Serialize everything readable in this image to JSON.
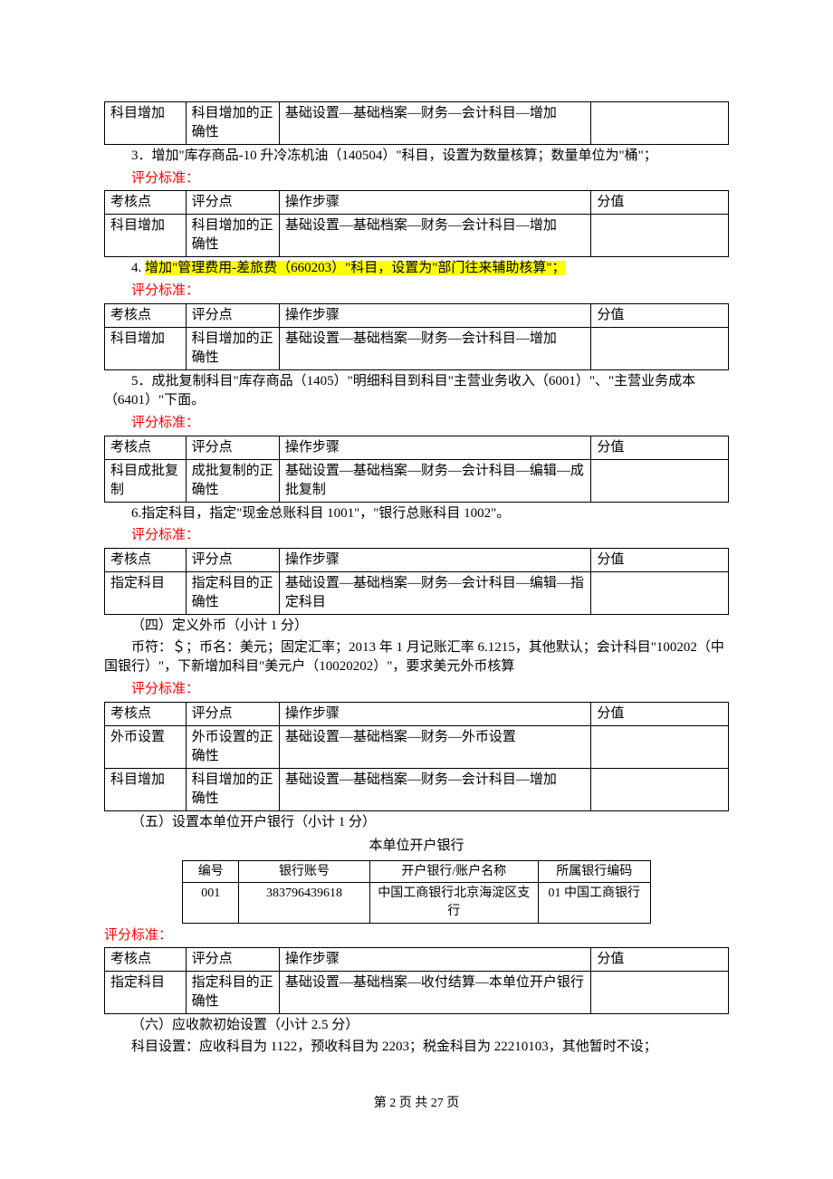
{
  "headers": {
    "kd": "考核点",
    "pf": "评分点",
    "cz": "操作步骤",
    "fz": "分值"
  },
  "std_label": "评分标准：",
  "t0": {
    "kd": "科目增加",
    "pf": "科目增加的正确性",
    "cz": "基础设置—基础档案—财务—会计科目—增加"
  },
  "p3": "3．增加\"库存商品-10 升冷冻机油（140504）\"科目，设置为数量核算；数量单位为\"桶\"；",
  "t3": {
    "kd": "科目增加",
    "pf": "科目增加的正确性",
    "cz": "基础设置—基础档案—财务—会计科目—增加"
  },
  "p4_prefix": "4. ",
  "p4_hl": "增加\"管理费用-差旅费（660203）\"科目，设置为\"部门往来辅助核算\"；",
  "t4": {
    "kd": "科目增加",
    "pf": "科目增加的正确性",
    "cz": "基础设置—基础档案—财务—会计科目—增加"
  },
  "p5": "5．成批复制科目\"库存商品（1405）\"明细科目到科目\"主营业务收入（6001）\"、\"主营业务成本（6401）\"下面。",
  "t5": {
    "kd": "科目成批复制",
    "pf": "成批复制的正确性",
    "cz": "基础设置—基础档案—财务—会计科目—编辑—成批复制"
  },
  "p6": "6.指定科目，指定\"现金总账科目 1001\"，\"银行总账科目 1002\"。",
  "t6": {
    "kd": "指定科目",
    "pf": "指定科目的正确性",
    "cz": "基础设置—基础档案—财务—会计科目—编辑—指定科目"
  },
  "p_s4a": "（四）定义外币（小计 1 分）",
  "p_s4b": "币符：＄；币名：美元；固定汇率；2013 年 1 月记账汇率 6.1215，其他默认；会计科目\"100202（中国银行）\"，下新增加科目\"美元户（10020202）\"，要求美元外币核算",
  "t7r1": {
    "kd": "外币设置",
    "pf": "外币设置的正确性",
    "cz": "基础设置—基础档案—财务—外币设置"
  },
  "t7r2": {
    "kd": "科目增加",
    "pf": "科目增加的正确性",
    "cz": "基础设置—基础档案—财务—会计科目—增加"
  },
  "p_s5": "（五）设置本单位开户银行（小计 1 分）",
  "bank_title": "本单位开户银行",
  "bank_h": {
    "c1": "编号",
    "c2": "银行账号",
    "c3": "开户银行/账户名称",
    "c4": "所属银行编码"
  },
  "bank_r": {
    "c1": "001",
    "c2": "383796439618",
    "c3": "中国工商银行北京海淀区支行",
    "c4": "01 中国工商银行"
  },
  "t8": {
    "kd": "指定科目",
    "pf": "指定科目的正确性",
    "cz": "基础设置—基础档案—收付结算—本单位开户银行"
  },
  "p_s6a": "（六）应收款初始设置（小计 2.5 分）",
  "p_s6b": "科目设置：应收科目为 1122，预收科目为 2203；税金科目为 22210103，其他暂时不设；",
  "footer": "第 2 页 共 27 页"
}
